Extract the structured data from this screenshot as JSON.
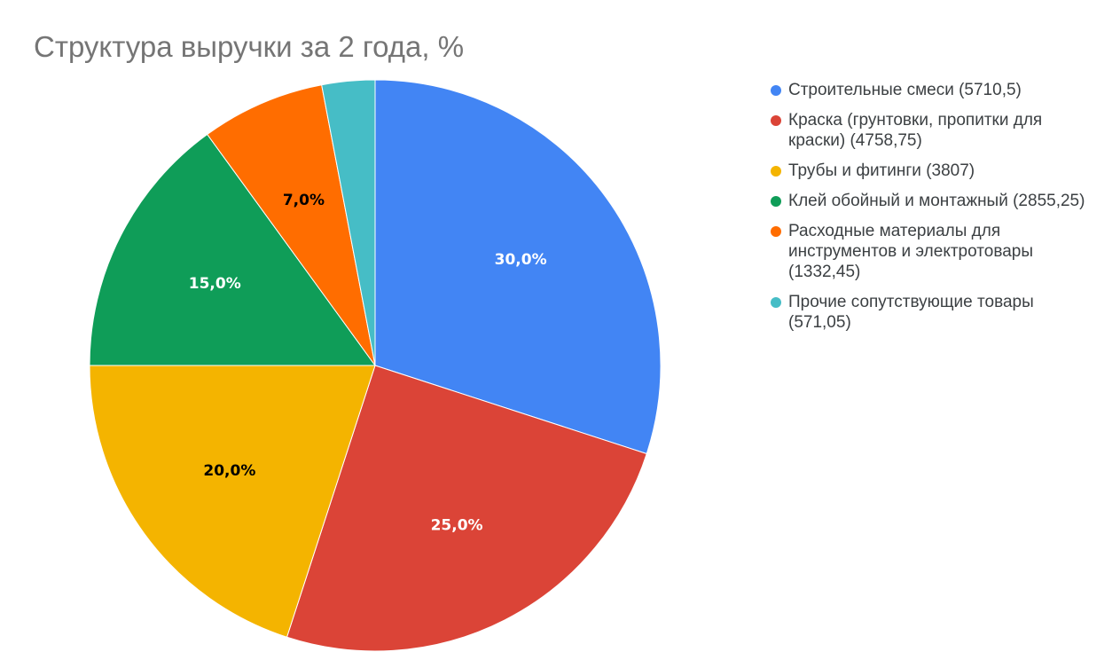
{
  "chart_data": {
    "type": "pie",
    "title": "Структура выручки за 2 года, %",
    "legend_position": "right",
    "slices": [
      {
        "legend": "Строительные смеси (5710,5)",
        "value": 5710.5,
        "label": "30,0%",
        "color": "#4285f4",
        "label_color": "#ffffff"
      },
      {
        "legend": "Краска (грунтовки, пропитки для краски) (4758,75)",
        "value": 4758.75,
        "label": "25,0%",
        "color": "#db4437",
        "label_color": "#ffffff"
      },
      {
        "legend": "Трубы и фитинги (3807)",
        "value": 3807,
        "label": "20,0%",
        "color": "#f4b400",
        "label_color": "#000000"
      },
      {
        "legend": "Клей обойный и монтажный (2855,25)",
        "value": 2855.25,
        "label": "15,0%",
        "color": "#0f9d58",
        "label_color": "#ffffff"
      },
      {
        "legend": "Расходные материалы для инструментов и электротовары (1332,45)",
        "value": 1332.45,
        "label": "7,0%",
        "color": "#ff6d00",
        "label_color": "#000000"
      },
      {
        "legend": "Прочие сопутствующие товары (571,05)",
        "value": 571.05,
        "label": "",
        "color": "#46bdc6",
        "label_color": "#000000"
      }
    ]
  }
}
